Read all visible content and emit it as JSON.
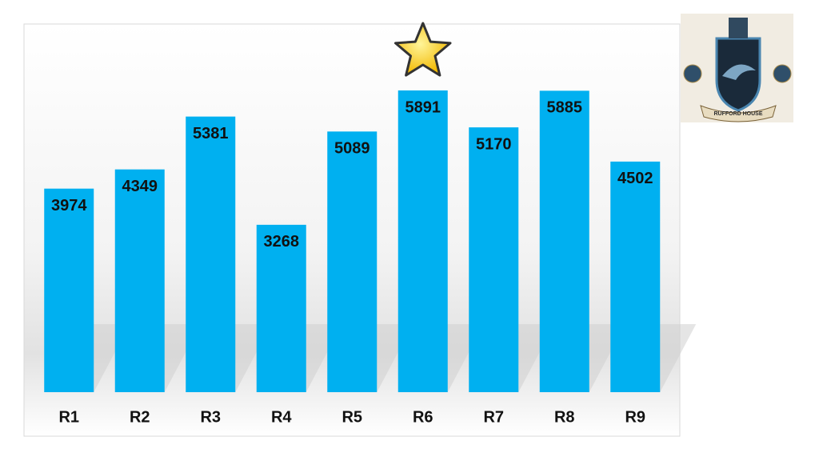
{
  "chart_data": {
    "type": "bar",
    "categories": [
      "R1",
      "R2",
      "R3",
      "R4",
      "R5",
      "R6",
      "R7",
      "R8",
      "R9"
    ],
    "values": [
      3974,
      4349,
      5381,
      3268,
      5089,
      5891,
      5170,
      5885,
      4502
    ],
    "color": "#00b0f0"
  },
  "logo_text": "RUFFORD HOUSE"
}
